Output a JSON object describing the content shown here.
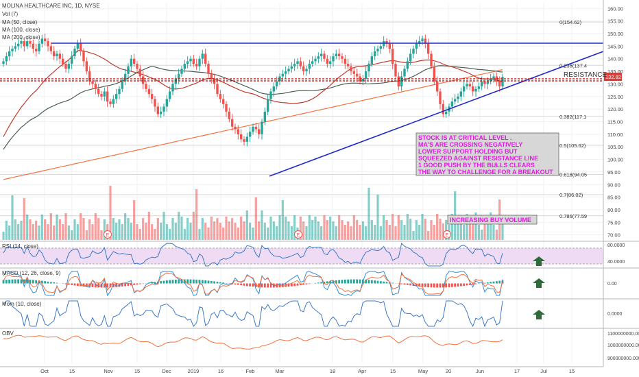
{
  "chart_data": {
    "type": "candlestick",
    "title": "MOLINA HEALTHCARE INC, 1D, NYSE",
    "indicators_legend": [
      "Vol (7)",
      "MA (50, close)",
      "MA (100, close)",
      "MA (200, close)"
    ],
    "x_ticks": [
      "Oct",
      "15",
      "Nov",
      "15",
      "Dec",
      "2019",
      "16",
      "Feb",
      "Mar",
      "18",
      "Apr",
      "15",
      "May",
      "20",
      "Jun",
      "17",
      "Jul",
      "15"
    ],
    "price_axis": {
      "ticks": [
        "160.00",
        "155.00",
        "150.00",
        "145.00",
        "140.00",
        "135.00",
        "130.00",
        "125.00",
        "120.00",
        "115.00",
        "110.00",
        "105.00",
        "100.00",
        "95.00",
        "90.00",
        "85.00",
        "80.00",
        "75.00",
        "70.00"
      ],
      "ylim": [
        68,
        162
      ],
      "current_price": "132.82"
    },
    "fib_levels": [
      {
        "label": "0(154.62)",
        "value": 154.62
      },
      {
        "label": "0.236(137.4",
        "value": 137.4
      },
      {
        "label": "0.382(117.1",
        "value": 117.1
      },
      {
        "label": "0.5(105.62)",
        "value": 105.62
      },
      {
        "label": "0.618(94.05",
        "value": 94.05
      },
      {
        "label": "0.7(86.02)",
        "value": 86.02
      },
      {
        "label": "0.786(77.59",
        "value": 77.59
      }
    ],
    "close_series": [
      139,
      141,
      143,
      144,
      145,
      146,
      147,
      145,
      147,
      146,
      144,
      143,
      146,
      148,
      147,
      145,
      143,
      141,
      142,
      140,
      138,
      136,
      138,
      141,
      144,
      146,
      143,
      139,
      135,
      131,
      130,
      128,
      126,
      125,
      127,
      123,
      122,
      124,
      126,
      128,
      131,
      134,
      137,
      140,
      138,
      136,
      133,
      130,
      128,
      126,
      124,
      121,
      118,
      119,
      121,
      124,
      127,
      130,
      132,
      134,
      136,
      138,
      139,
      140,
      138,
      137,
      140,
      142,
      138,
      134,
      132,
      130,
      126,
      124,
      122,
      119,
      116,
      113,
      112,
      110,
      108,
      107,
      109,
      111,
      113,
      112,
      110,
      115,
      119,
      124,
      127,
      129,
      131,
      133,
      134,
      135,
      136,
      137,
      138,
      139,
      137,
      135,
      136,
      138,
      139,
      140,
      141,
      142,
      140,
      138,
      139,
      141,
      142,
      141,
      140,
      138,
      137,
      135,
      134,
      133,
      131,
      132,
      135,
      138,
      141,
      143,
      144,
      145,
      147,
      146,
      144,
      138,
      133,
      129,
      133,
      136,
      139,
      142,
      144,
      146,
      147,
      148,
      146,
      142,
      137,
      131,
      127,
      122,
      118,
      119,
      121,
      123,
      124,
      125,
      127,
      129,
      130,
      129,
      127,
      128,
      129,
      131,
      130,
      131,
      132,
      133,
      131,
      129,
      132.82
    ],
    "annotations": {
      "resistance": "RESISTANCE",
      "note_lines": [
        "STOCK IS AT CRITICAL LEVEL .",
        "MA'S ARE CROSSING NEGATIVELY",
        "LOWER SUPPORT HOLDING BUT",
        "SQUEEZED AGAINST RESISTANCE LINE",
        "1 GOOD PUSH BY THE BULLS CLEARS",
        "THE WAY TO CHALLENGE FOR A BREAKOUT"
      ],
      "volume_note": "INCREASING BUY VOLUME",
      "earnings_marker": "E"
    },
    "panes": [
      {
        "name": "RSI (14, close)",
        "ticks": [
          "80.0000",
          "40.0000"
        ]
      },
      {
        "name": "MACD (12, 26, close, 9)",
        "ticks": [
          "0.00"
        ]
      },
      {
        "name": "Mom (10, close)",
        "ticks": [
          "0.0000"
        ]
      },
      {
        "name": "OBV",
        "ticks": [
          "1100000000.0000",
          "1000000000.0000",
          "900000000.0000"
        ]
      }
    ]
  },
  "colors": {
    "up": "#26a69a",
    "down": "#ef5350",
    "ma50": "#c0392b",
    "ma100": "#4a5f4f",
    "ma200": "#f4703c",
    "trend": "#1f2ac4",
    "resistance": "#cc0000",
    "note_bg": "#d7d7d7",
    "note_text": "#e01ee0",
    "rsi": "#3a78c7",
    "rsi_fill": "#efdcf4",
    "macd": "#3a8bd2",
    "signal": "#f4703c",
    "mom": "#3a78c7",
    "obv": "#f4703c",
    "arrow": "#2e6b3a",
    "current_tag": "#e53935"
  }
}
